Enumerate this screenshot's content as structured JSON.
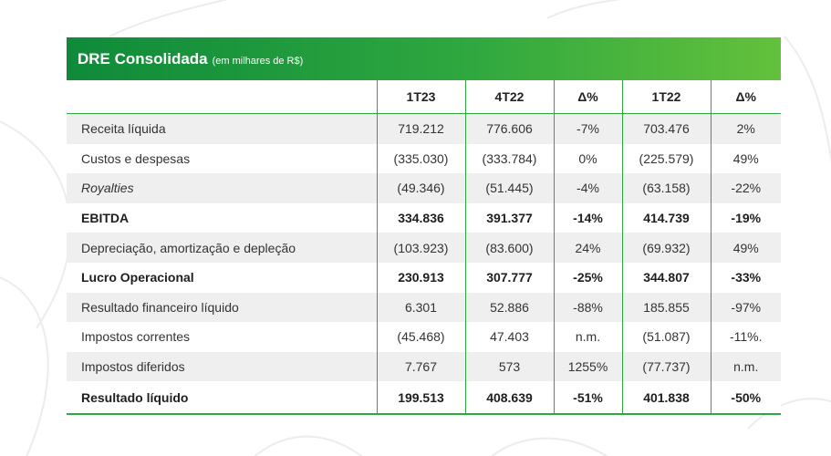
{
  "title": {
    "main": "DRE Consolidada",
    "sub": "(em milhares de R$)"
  },
  "columns": [
    "",
    "1T23",
    "4T22",
    "Δ%",
    "1T22",
    "Δ%"
  ],
  "rows": [
    {
      "label": "Receita líquida",
      "values": [
        "719.212",
        "776.606",
        "-7%",
        "703.476",
        "2%"
      ]
    },
    {
      "label": "Custos e despesas",
      "values": [
        "(335.030)",
        "(333.784)",
        "0%",
        "(225.579)",
        "49%"
      ]
    },
    {
      "label": "Royalties",
      "values": [
        "(49.346)",
        "(51.445)",
        "-4%",
        "(63.158)",
        "-22%"
      ]
    },
    {
      "label": "EBITDA",
      "values": [
        "334.836",
        "391.377",
        "-14%",
        "414.739",
        "-19%"
      ]
    },
    {
      "label": "Depreciação, amortização e depleção",
      "values": [
        "(103.923)",
        "(83.600)",
        "24%",
        "(69.932)",
        "49%"
      ]
    },
    {
      "label": "Lucro Operacional",
      "values": [
        "230.913",
        "307.777",
        "-25%",
        "344.807",
        "-33%"
      ]
    },
    {
      "label": "Resultado financeiro líquido",
      "values": [
        "6.301",
        "52.886",
        "-88%",
        "185.855",
        "-97%"
      ]
    },
    {
      "label": "Impostos correntes",
      "values": [
        "(45.468)",
        "47.403",
        "n.m.",
        "(51.087)",
        "-11%."
      ]
    },
    {
      "label": "Impostos diferidos",
      "values": [
        "7.767",
        "573",
        "1255%",
        "(77.737)",
        "n.m."
      ]
    },
    {
      "label": "Resultado líquido",
      "values": [
        "199.513",
        "408.639",
        "-51%",
        "401.838",
        "-50%"
      ]
    }
  ]
}
